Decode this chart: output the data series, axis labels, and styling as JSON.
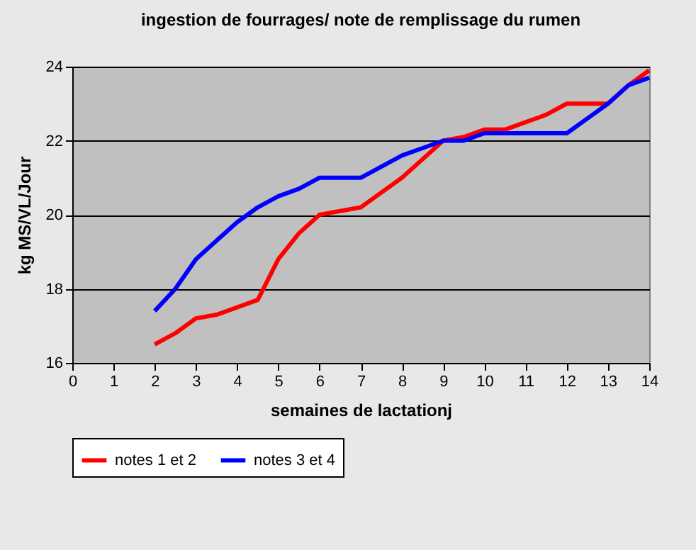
{
  "chart_data": {
    "type": "line",
    "title": "ingestion de fourrages/ note de remplissage du rumen",
    "xlabel": "semaines de lactationj",
    "ylabel": "kg MS/VL/Jour",
    "x": [
      2,
      2.5,
      3,
      3.5,
      4,
      4.5,
      5,
      5.5,
      6,
      6.5,
      7,
      7.5,
      8,
      8.5,
      9,
      9.5,
      10,
      10.5,
      11,
      11.5,
      12,
      12.5,
      13,
      13.5,
      14
    ],
    "series": [
      {
        "name": "notes 1 et 2",
        "color": "#ff0000",
        "values": [
          16.5,
          16.8,
          17.2,
          17.3,
          17.5,
          17.7,
          18.8,
          19.5,
          20,
          20.1,
          20.2,
          20.6,
          21,
          21.5,
          22,
          22.1,
          22.3,
          22.3,
          22.5,
          22.7,
          23,
          23,
          23,
          23.5,
          23.9
        ]
      },
      {
        "name": "notes 3 et 4",
        "color": "#0000ff",
        "values": [
          17.4,
          18,
          18.8,
          19.3,
          19.8,
          20.2,
          20.5,
          20.7,
          21,
          21,
          21,
          21.3,
          21.6,
          21.8,
          22,
          22,
          22.2,
          22.2,
          22.2,
          22.2,
          22.2,
          22.6,
          23,
          23.5,
          23.7
        ]
      }
    ],
    "xlim": [
      0,
      14
    ],
    "xticks": [
      0,
      1,
      2,
      3,
      4,
      5,
      6,
      7,
      8,
      9,
      10,
      11,
      12,
      13,
      14
    ],
    "ylim": [
      16,
      24
    ],
    "yticks": [
      16,
      18,
      20,
      22,
      24
    ],
    "grid": "y",
    "legend": "bottom",
    "marker": "none",
    "line_style": "solid"
  }
}
